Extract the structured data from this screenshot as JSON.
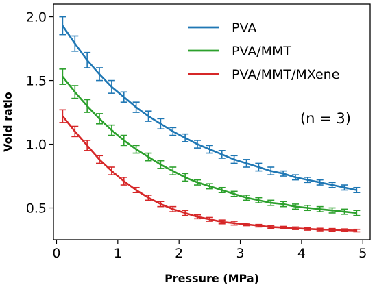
{
  "chart_data": {
    "type": "line",
    "xlabel": "Pressure (MPa)",
    "ylabel": "Void ratio",
    "xlim": [
      -0.05,
      5.12
    ],
    "ylim": [
      0.25,
      2.1
    ],
    "xticks": [
      0,
      1,
      2,
      3,
      4,
      5
    ],
    "yticks": [
      0.5,
      1.0,
      1.5,
      2.0
    ],
    "xtick_labels": [
      "0",
      "1",
      "2",
      "3",
      "4",
      "5"
    ],
    "ytick_labels": [
      "0.5",
      "1.0",
      "1.5",
      "2.0"
    ],
    "legend_position": "top-right",
    "annotation": "(n = 3)",
    "x": [
      0.1,
      0.3,
      0.5,
      0.7,
      0.9,
      1.1,
      1.3,
      1.5,
      1.7,
      1.9,
      2.1,
      2.3,
      2.5,
      2.7,
      2.9,
      3.1,
      3.3,
      3.5,
      3.7,
      3.9,
      4.1,
      4.3,
      4.5,
      4.7,
      4.9
    ],
    "series": [
      {
        "name": "PVA",
        "color": "#1f77b4",
        "values": [
          1.93,
          1.79,
          1.66,
          1.55,
          1.45,
          1.37,
          1.29,
          1.22,
          1.16,
          1.1,
          1.05,
          1.0,
          0.96,
          0.92,
          0.88,
          0.85,
          0.82,
          0.79,
          0.77,
          0.74,
          0.72,
          0.7,
          0.68,
          0.66,
          0.64
        ],
        "errors": [
          0.07,
          0.06,
          0.06,
          0.05,
          0.05,
          0.04,
          0.04,
          0.04,
          0.04,
          0.03,
          0.03,
          0.03,
          0.03,
          0.03,
          0.03,
          0.03,
          0.03,
          0.03,
          0.02,
          0.02,
          0.02,
          0.02,
          0.02,
          0.02,
          0.02
        ]
      },
      {
        "name": "PVA/MMT",
        "color": "#2ca02c",
        "values": [
          1.53,
          1.41,
          1.3,
          1.2,
          1.11,
          1.03,
          0.96,
          0.9,
          0.84,
          0.79,
          0.74,
          0.7,
          0.67,
          0.64,
          0.61,
          0.58,
          0.56,
          0.54,
          0.53,
          0.51,
          0.5,
          0.49,
          0.48,
          0.47,
          0.46
        ],
        "errors": [
          0.06,
          0.05,
          0.05,
          0.04,
          0.04,
          0.04,
          0.03,
          0.03,
          0.03,
          0.03,
          0.03,
          0.02,
          0.02,
          0.02,
          0.02,
          0.02,
          0.02,
          0.02,
          0.02,
          0.02,
          0.02,
          0.02,
          0.02,
          0.02,
          0.02
        ]
      },
      {
        "name": "PVA/MMT/MXene",
        "color": "#d62728",
        "values": [
          1.22,
          1.1,
          0.99,
          0.88,
          0.79,
          0.71,
          0.64,
          0.58,
          0.53,
          0.49,
          0.46,
          0.43,
          0.41,
          0.39,
          0.38,
          0.37,
          0.36,
          0.35,
          0.345,
          0.34,
          0.335,
          0.33,
          0.328,
          0.325,
          0.322
        ],
        "errors": [
          0.05,
          0.04,
          0.04,
          0.03,
          0.03,
          0.03,
          0.02,
          0.02,
          0.02,
          0.02,
          0.02,
          0.015,
          0.015,
          0.015,
          0.015,
          0.01,
          0.01,
          0.01,
          0.01,
          0.01,
          0.01,
          0.01,
          0.01,
          0.01,
          0.01
        ]
      }
    ]
  }
}
